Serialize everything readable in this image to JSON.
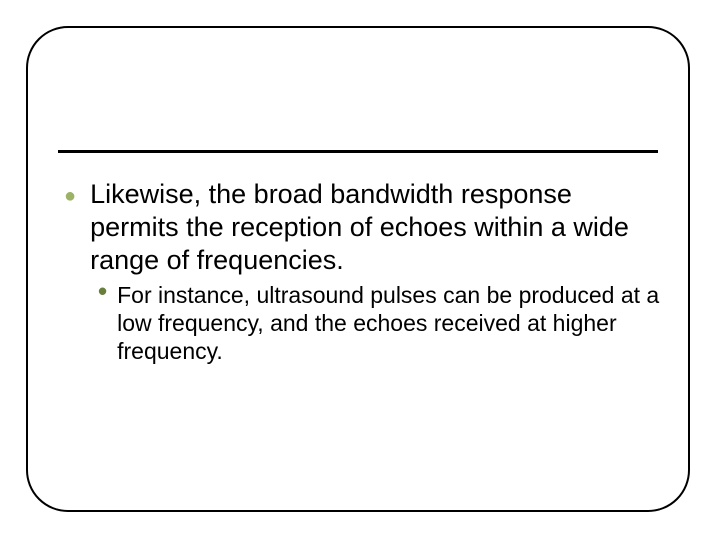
{
  "slide": {
    "border_color": "#000000",
    "border_radius": 42,
    "background": "#ffffff",
    "divider_color": "#000000",
    "bullet1_color": "#9cb266",
    "bullet2_color": "#677f3b",
    "text_color": "#000000",
    "main_fontsize": 27,
    "sub_fontsize": 23,
    "main_text": "Likewise, the broad bandwidth response permits the reception of echoes within a wide range of frequencies.",
    "sub_text": "For instance, ultrasound pulses can be produced at a low frequency, and the echoes received at higher frequency.",
    "bullet1_glyph": "●",
    "bullet2_glyph": "•"
  }
}
